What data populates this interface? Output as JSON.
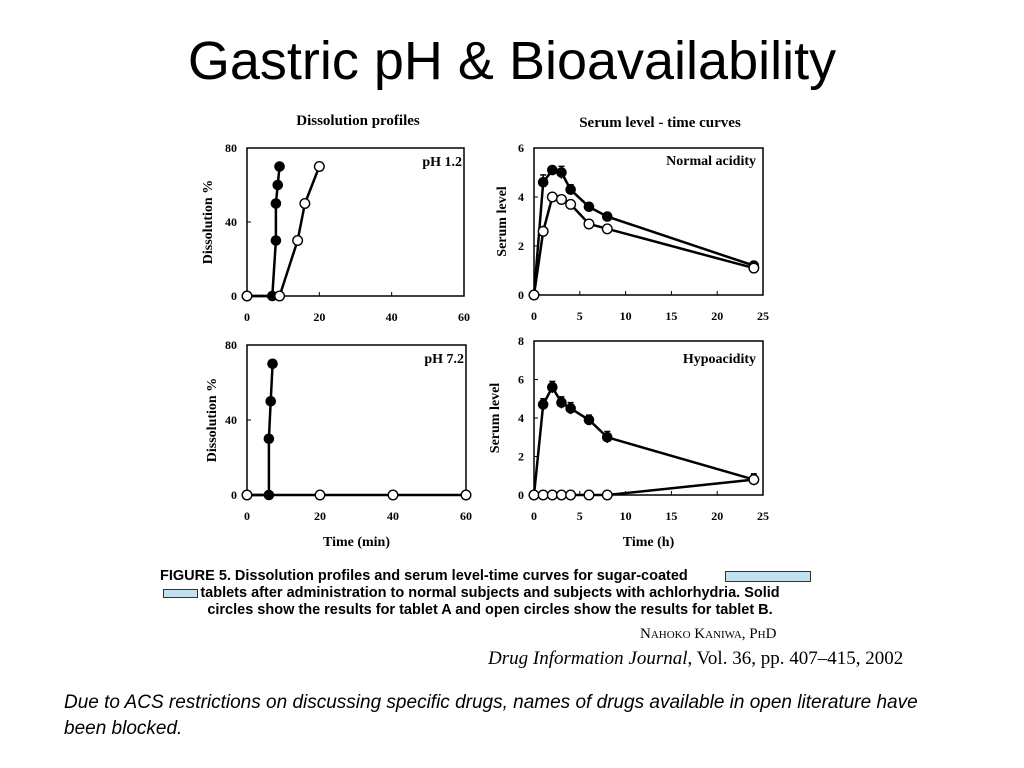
{
  "slide": {
    "title": "Gastric pH & Bioavailability",
    "note": "Due to ACS restrictions on discussing specific drugs, names of drugs available in open literature have been blocked."
  },
  "figure": {
    "left_heading": "Dissolution profiles",
    "right_heading": "Serum level - time curves",
    "caption_label": "FIGURE",
    "caption_line1": "5. Dissolution profiles and serum level-time curves for sugar-coated",
    "caption_line2": "tablets after administration to normal subjects and subjects with achlorhydria. Solid",
    "caption_line3": "circles show the results for tablet A and open circles show the results for tablet B.",
    "author": "Nahoko Kaniwa, PhD",
    "citation_journal": "Drug Information Journal",
    "citation_rest": ", Vol. 36, pp. 407–415, 2002"
  },
  "chart_data": [
    {
      "type": "line",
      "panel_label": "pH 1.2",
      "xlabel": "",
      "ylabel": "Dissolution %",
      "xlim": [
        0,
        60
      ],
      "ylim": [
        0,
        80
      ],
      "xticks": [
        0,
        20,
        40,
        60
      ],
      "yticks": [
        0,
        40,
        80
      ],
      "series": [
        {
          "marker": "filled",
          "x": [
            0,
            7,
            8,
            8,
            8.5,
            9
          ],
          "y": [
            0,
            0,
            30,
            50,
            60,
            70
          ]
        },
        {
          "marker": "open",
          "x": [
            0,
            9,
            14,
            16,
            20
          ],
          "y": [
            0,
            0,
            30,
            50,
            70
          ]
        }
      ]
    },
    {
      "type": "line",
      "panel_label": "pH 7.2",
      "xlabel": "Time (min)",
      "ylabel": "Dissolution %",
      "xlim": [
        0,
        60
      ],
      "ylim": [
        0,
        80
      ],
      "xticks": [
        0,
        20,
        40,
        60
      ],
      "yticks": [
        0,
        40,
        80
      ],
      "series": [
        {
          "marker": "filled",
          "x": [
            0,
            6,
            6,
            6.5,
            7
          ],
          "y": [
            0,
            0,
            30,
            50,
            70
          ]
        },
        {
          "marker": "open",
          "x": [
            0,
            20,
            40,
            60
          ],
          "y": [
            0,
            0,
            0,
            0
          ]
        }
      ]
    },
    {
      "type": "line",
      "panel_label": "Normal acidity",
      "xlabel": "",
      "ylabel": "Serum level",
      "xlim": [
        0,
        25
      ],
      "ylim": [
        0,
        6
      ],
      "xticks": [
        0,
        5,
        10,
        15,
        20,
        25
      ],
      "yticks": [
        0,
        2,
        4,
        6
      ],
      "series": [
        {
          "marker": "filled",
          "x": [
            0,
            1,
            2,
            3,
            4,
            6,
            8,
            24
          ],
          "y": [
            0,
            4.6,
            5.1,
            5.0,
            4.3,
            3.6,
            3.2,
            1.2
          ],
          "err": [
            0,
            0.3,
            0.15,
            0.25,
            0.2,
            0.1,
            0.1,
            0.1
          ]
        },
        {
          "marker": "open",
          "x": [
            0,
            1,
            2,
            3,
            4,
            6,
            8,
            24
          ],
          "y": [
            0,
            2.6,
            4.0,
            3.9,
            3.7,
            2.9,
            2.7,
            1.1
          ]
        }
      ]
    },
    {
      "type": "line",
      "panel_label": "Hypoacidity",
      "xlabel": "Time (h)",
      "ylabel": "Serum level",
      "xlim": [
        0,
        25
      ],
      "ylim": [
        0,
        8
      ],
      "xticks": [
        0,
        5,
        10,
        15,
        20,
        25
      ],
      "yticks": [
        0,
        2,
        4,
        6,
        8
      ],
      "series": [
        {
          "marker": "filled",
          "x": [
            0,
            1,
            2,
            3,
            4,
            6,
            8,
            24
          ],
          "y": [
            0,
            4.7,
            5.6,
            4.8,
            4.5,
            3.9,
            3.0,
            0.8
          ],
          "err": [
            0,
            0.3,
            0.3,
            0.3,
            0.3,
            0.25,
            0.3,
            0.3
          ]
        },
        {
          "marker": "open",
          "x": [
            0,
            1,
            2,
            3,
            4,
            6,
            8,
            24
          ],
          "y": [
            0,
            0,
            0,
            0,
            0,
            0,
            0,
            0.8
          ]
        }
      ]
    }
  ]
}
